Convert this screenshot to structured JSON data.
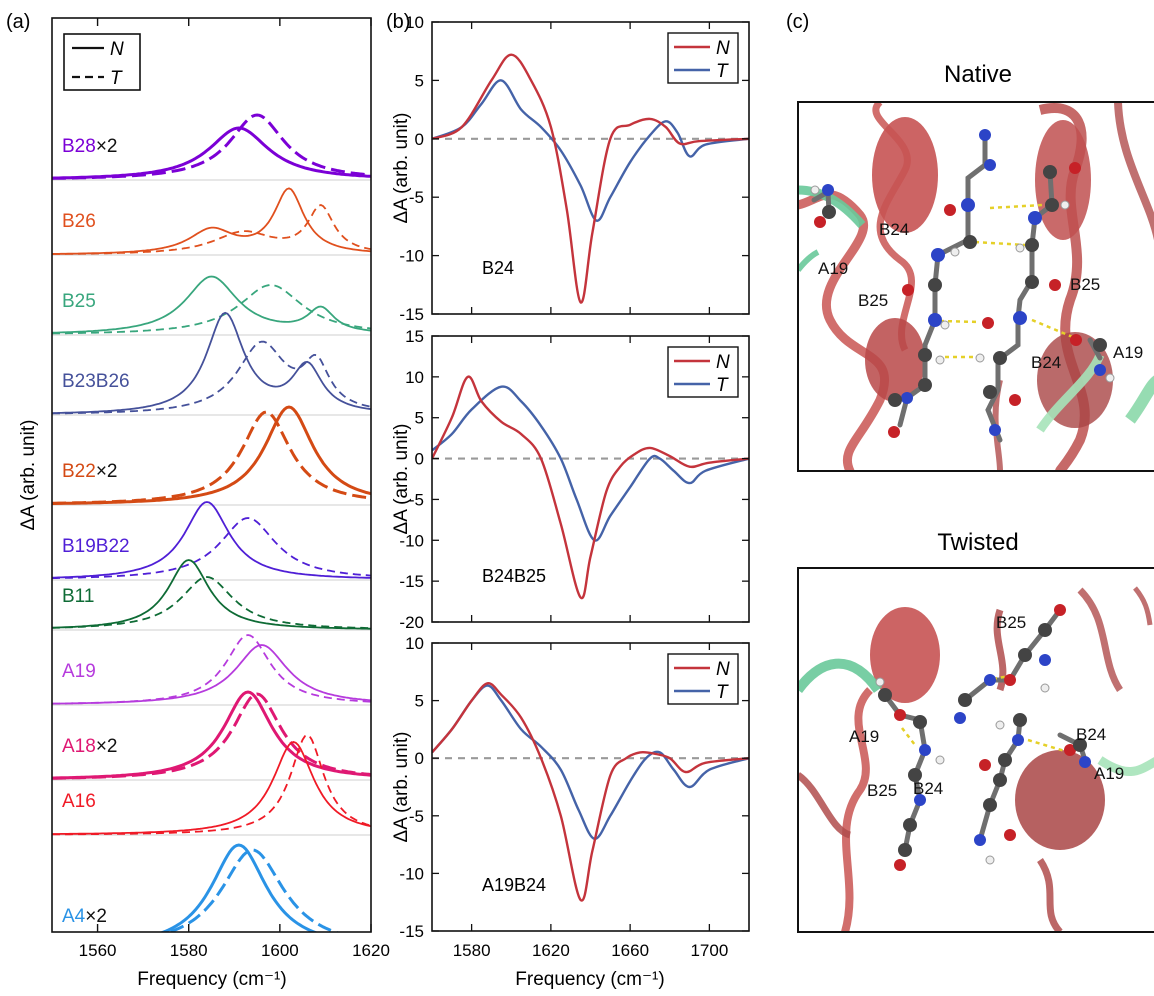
{
  "panels": {
    "a": {
      "label": "(a)",
      "xlabel": "Frequency (cm⁻¹)",
      "ylabel": "ΔA (arb. unit)",
      "xlim": [
        1550,
        1620
      ],
      "xticks": [
        "1560",
        "1580",
        "1600",
        "1620"
      ],
      "legend": [
        {
          "style": "solid",
          "label": "N"
        },
        {
          "style": "dashed",
          "label": "T"
        }
      ],
      "traces": [
        {
          "name": "B28",
          "suffix": "×2",
          "color": "#7B00D6",
          "N": {
            "amp": 52,
            "c": 1591,
            "w": 16,
            "lw": 3.0
          },
          "T": {
            "amp": 65,
            "c": 1595,
            "w": 14.5,
            "lw": 3.0
          }
        },
        {
          "name": "B26",
          "suffix": "",
          "color": "#E0501E",
          "N": {
            "amp": 64,
            "c": 1602,
            "w": 8,
            "amp2": 24,
            "c2": 1585,
            "w2": 12,
            "lw": 1.8
          },
          "T": {
            "amp": 46,
            "c": 1609,
            "w": 7,
            "amp2": 22,
            "c2": 1592,
            "w2": 16,
            "lw": 1.8
          }
        },
        {
          "name": "B25",
          "suffix": "",
          "color": "#38A67D",
          "N": {
            "amp": 58,
            "c": 1585,
            "w": 14,
            "amp2": 24,
            "c2": 1609,
            "w2": 7,
            "lw": 1.8
          },
          "T": {
            "amp": 50,
            "c": 1598,
            "w": 17,
            "lw": 1.8
          }
        },
        {
          "name": "B23B26",
          "suffix": "",
          "color": "#45519A",
          "N": {
            "amp": 100,
            "c": 1588,
            "w": 10,
            "amp2": 46,
            "c2": 1606,
            "w2": 8,
            "lw": 1.8
          },
          "T": {
            "amp": 70,
            "c": 1596,
            "w": 13,
            "amp2": 44,
            "c2": 1608,
            "w2": 7,
            "lw": 1.8
          }
        },
        {
          "name": "B22",
          "suffix": "×2",
          "color": "#D44A14",
          "N": {
            "amp": 98,
            "c": 1602,
            "w": 13,
            "lw": 3.0
          },
          "T": {
            "amp": 93,
            "c": 1597,
            "w": 13,
            "lw": 3.0
          }
        },
        {
          "name": "B19B22",
          "suffix": "",
          "color": "#4F1FD6",
          "N": {
            "amp": 78,
            "c": 1584,
            "w": 12,
            "lw": 1.8
          },
          "T": {
            "amp": 62,
            "c": 1593,
            "w": 15,
            "lw": 1.8
          }
        },
        {
          "name": "B11",
          "suffix": "",
          "color": "#0E6B35",
          "N": {
            "amp": 70,
            "c": 1580,
            "w": 11,
            "lw": 1.8
          },
          "T": {
            "amp": 53,
            "c": 1584,
            "w": 14,
            "lw": 1.8
          }
        },
        {
          "name": "A19",
          "suffix": "",
          "color": "#B63BDD",
          "N": {
            "amp": 60,
            "c": 1596,
            "w": 14,
            "lw": 1.8
          },
          "T": {
            "amp": 70,
            "c": 1593,
            "w": 12,
            "lw": 1.8
          }
        },
        {
          "name": "A18",
          "suffix": "×2",
          "color": "#DF1873",
          "N": {
            "amp": 88,
            "c": 1593,
            "w": 13,
            "lw": 3.0
          },
          "T": {
            "amp": 86,
            "c": 1595,
            "w": 13,
            "lw": 3.0
          }
        },
        {
          "name": "A16",
          "suffix": "",
          "color": "#F01A26",
          "N": {
            "amp": 93,
            "c": 1603,
            "w": 11,
            "lw": 1.8
          },
          "T": {
            "amp": 100,
            "c": 1606,
            "w": 9,
            "lw": 1.8
          }
        },
        {
          "name": "A4",
          "suffix": "×2",
          "color": "#2A93E6",
          "N": {
            "amp": 105,
            "c": 1591,
            "w": 15,
            "lw": 3.0
          },
          "T": {
            "amp": 100,
            "c": 1594,
            "w": 17,
            "lw": 3.0
          }
        }
      ]
    },
    "b": {
      "label": "(b)",
      "xlabel": "Frequency (cm⁻¹)",
      "ylabel": "ΔA (arb. unit)",
      "xlim": [
        1560,
        1720
      ],
      "xticks": [
        "1580",
        "1620",
        "1660",
        "1700"
      ],
      "series_colors": {
        "N": "#C4343C",
        "T": "#4563A8"
      },
      "legend": [
        "N",
        "T"
      ],
      "subplots": [
        {
          "name": "B24",
          "ylim": [
            -15,
            10
          ],
          "yticks": [
            "10",
            "5",
            "0",
            "-5",
            "-10",
            "-15"
          ],
          "N": [
            [
              1560,
              0
            ],
            [
              1575,
              1
            ],
            [
              1590,
              5
            ],
            [
              1600,
              7.2
            ],
            [
              1610,
              5
            ],
            [
              1620,
              1
            ],
            [
              1628,
              -6
            ],
            [
              1635,
              -14
            ],
            [
              1641,
              -8
            ],
            [
              1650,
              0
            ],
            [
              1660,
              1.2
            ],
            [
              1670,
              1.7
            ],
            [
              1678,
              1
            ],
            [
              1685,
              -0.4
            ],
            [
              1695,
              -0.2
            ],
            [
              1720,
              0
            ]
          ],
          "T": [
            [
              1560,
              0
            ],
            [
              1575,
              1
            ],
            [
              1585,
              3
            ],
            [
              1595,
              5
            ],
            [
              1605,
              2.5
            ],
            [
              1615,
              1
            ],
            [
              1625,
              -1
            ],
            [
              1635,
              -4
            ],
            [
              1643,
              -7
            ],
            [
              1650,
              -5
            ],
            [
              1660,
              -2
            ],
            [
              1670,
              0.3
            ],
            [
              1678,
              1.5
            ],
            [
              1684,
              0.5
            ],
            [
              1690,
              -1.5
            ],
            [
              1698,
              -0.5
            ],
            [
              1720,
              0
            ]
          ]
        },
        {
          "name": "B24B25",
          "ylim": [
            -20,
            15
          ],
          "yticks": [
            "15",
            "10",
            "5",
            "0",
            "-5",
            "-10",
            "-15",
            "-20"
          ],
          "N": [
            [
              1560,
              0
            ],
            [
              1570,
              5
            ],
            [
              1578,
              10
            ],
            [
              1585,
              7
            ],
            [
              1595,
              4.5
            ],
            [
              1605,
              3
            ],
            [
              1615,
              0
            ],
            [
              1625,
              -8
            ],
            [
              1635,
              -17
            ],
            [
              1640,
              -12
            ],
            [
              1648,
              -4
            ],
            [
              1655,
              -1
            ],
            [
              1662,
              0.5
            ],
            [
              1670,
              1.3
            ],
            [
              1680,
              0.3
            ],
            [
              1690,
              -1
            ],
            [
              1700,
              -0.5
            ],
            [
              1720,
              0
            ]
          ],
          "T": [
            [
              1560,
              1
            ],
            [
              1570,
              3
            ],
            [
              1580,
              6
            ],
            [
              1595,
              8.8
            ],
            [
              1605,
              7
            ],
            [
              1615,
              4
            ],
            [
              1625,
              0
            ],
            [
              1633,
              -5
            ],
            [
              1642,
              -10
            ],
            [
              1650,
              -7
            ],
            [
              1660,
              -3.5
            ],
            [
              1670,
              0
            ],
            [
              1675,
              0
            ],
            [
              1682,
              -1.5
            ],
            [
              1690,
              -3
            ],
            [
              1698,
              -1.5
            ],
            [
              1720,
              0
            ]
          ]
        },
        {
          "name": "A19B24",
          "ylim": [
            -15,
            10
          ],
          "yticks": [
            "10",
            "5",
            "0",
            "-5",
            "-10",
            "-15"
          ],
          "N": [
            [
              1560,
              0.5
            ],
            [
              1570,
              2.5
            ],
            [
              1580,
              5
            ],
            [
              1588,
              6.5
            ],
            [
              1595,
              5.5
            ],
            [
              1605,
              3.5
            ],
            [
              1615,
              0
            ],
            [
              1625,
              -5
            ],
            [
              1635,
              -12.3
            ],
            [
              1641,
              -8
            ],
            [
              1650,
              -1.5
            ],
            [
              1658,
              0
            ],
            [
              1665,
              0.5
            ],
            [
              1672,
              0.4
            ],
            [
              1680,
              0
            ],
            [
              1688,
              -1.2
            ],
            [
              1698,
              -0.4
            ],
            [
              1720,
              0
            ]
          ],
          "T": [
            [
              1560,
              0.5
            ],
            [
              1570,
              2.5
            ],
            [
              1580,
              5
            ],
            [
              1588,
              6.3
            ],
            [
              1595,
              5
            ],
            [
              1605,
              2.5
            ],
            [
              1615,
              1
            ],
            [
              1625,
              -1
            ],
            [
              1634,
              -4.5
            ],
            [
              1642,
              -7
            ],
            [
              1650,
              -5
            ],
            [
              1660,
              -2
            ],
            [
              1668,
              0
            ],
            [
              1675,
              0.5
            ],
            [
              1682,
              -1
            ],
            [
              1690,
              -2.5
            ],
            [
              1700,
              -1
            ],
            [
              1720,
              0
            ]
          ]
        }
      ]
    },
    "c": {
      "label": "(c)",
      "native_title": "Native",
      "twisted_title": "Twisted",
      "native_labels": [
        "B24",
        "A19",
        "B25",
        "B25",
        "B24",
        "A19"
      ],
      "twisted_labels": [
        "B25",
        "A19",
        "B24",
        "A19",
        "B25",
        "B24"
      ]
    }
  }
}
